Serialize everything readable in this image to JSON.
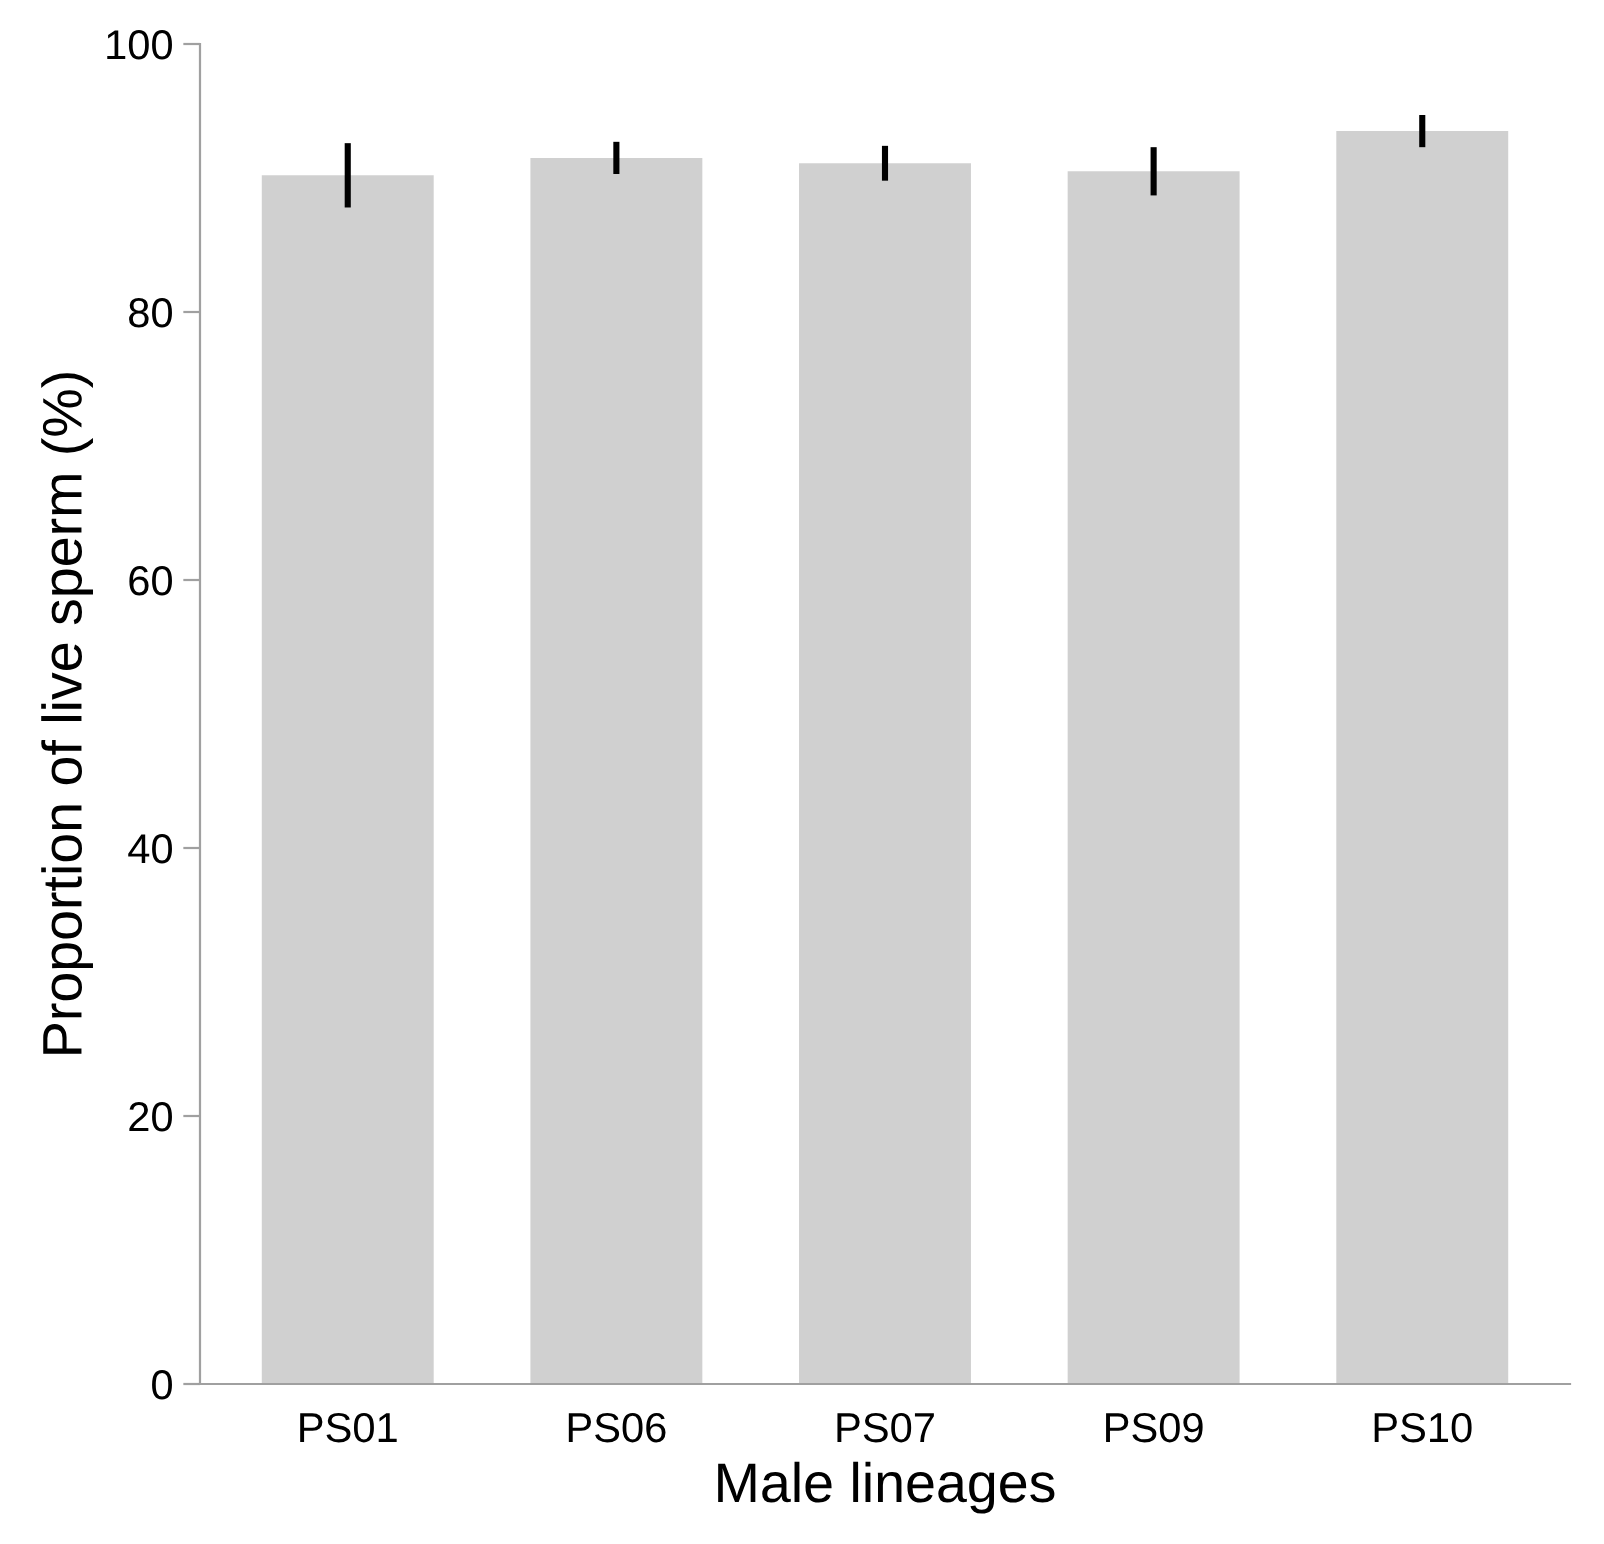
{
  "chart_data": {
    "type": "bar",
    "xlabel": "Male lineages",
    "ylabel": "Proportion of live sperm (%)",
    "categories": [
      "PS01",
      "PS06",
      "PS07",
      "PS09",
      "PS10"
    ],
    "values": [
      90.2,
      91.5,
      91.1,
      90.5,
      93.5
    ],
    "errors": [
      2.4,
      1.2,
      1.3,
      1.8,
      1.2
    ],
    "color": "#d0d0d0",
    "ylim": [
      0,
      100
    ],
    "yticks": [
      0,
      20,
      40,
      60,
      80,
      100
    ],
    "grid": false
  }
}
